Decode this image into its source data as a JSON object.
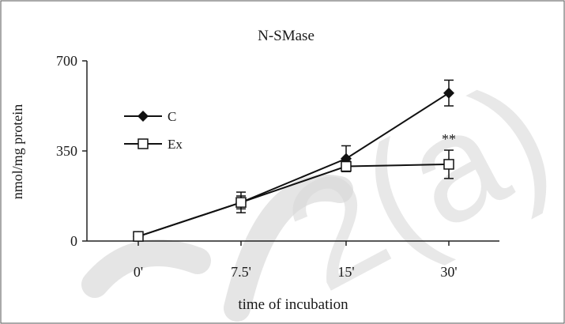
{
  "chart_data": {
    "type": "line",
    "title": "N-SMase",
    "xlabel": "time of incubation",
    "ylabel": "nmol/mg protein",
    "categories": [
      "0'",
      "7.5'",
      "15'",
      "30'"
    ],
    "ylim": [
      0,
      700
    ],
    "yticks": [
      "0",
      "350",
      "700"
    ],
    "grid": false,
    "legend_position": "left",
    "series": [
      {
        "name": "C",
        "marker": "filled-diamond",
        "color": "#111111",
        "values": [
          18,
          150,
          320,
          575
        ],
        "errors": [
          8,
          40,
          50,
          50
        ]
      },
      {
        "name": "Ex",
        "marker": "open-square",
        "color": "#111111",
        "values": [
          18,
          150,
          290,
          298
        ],
        "errors": [
          8,
          25,
          20,
          55
        ]
      }
    ],
    "annotations": [
      {
        "text": "**",
        "category": "30'",
        "series": "Ex"
      }
    ]
  }
}
